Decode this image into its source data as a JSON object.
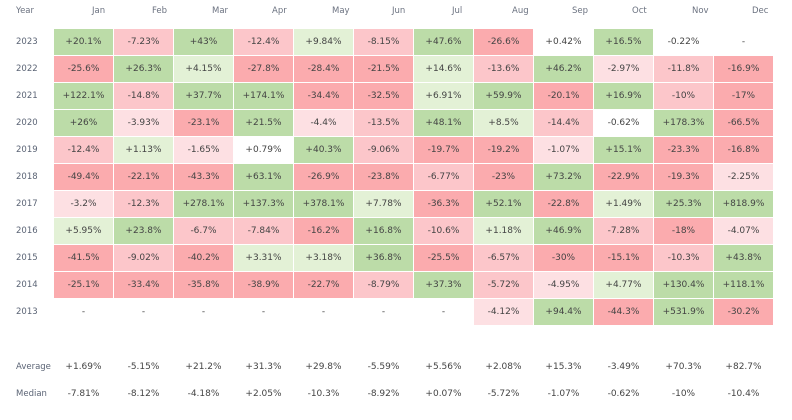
{
  "chart_data": {
    "type": "heatmap",
    "corner_label": "Year",
    "columns": [
      "Jan",
      "Feb",
      "Mar",
      "Apr",
      "May",
      "Jun",
      "Jul",
      "Aug",
      "Sep",
      "Oct",
      "Nov",
      "Dec"
    ],
    "rows": [
      {
        "year": "2023",
        "values": [
          "+20.1%",
          "-7.23%",
          "+43%",
          "-12.4%",
          "+9.84%",
          "-8.15%",
          "+47.6%",
          "-26.6%",
          "+0.42%",
          "+16.5%",
          "-0.22%",
          "-"
        ]
      },
      {
        "year": "2022",
        "values": [
          "-25.6%",
          "+26.3%",
          "+4.15%",
          "-27.8%",
          "-28.4%",
          "-21.5%",
          "+14.6%",
          "-13.6%",
          "+46.2%",
          "-2.97%",
          "-11.8%",
          "-16.9%"
        ]
      },
      {
        "year": "2021",
        "values": [
          "+122.1%",
          "-14.8%",
          "+37.7%",
          "+174.1%",
          "-34.4%",
          "-32.5%",
          "+6.91%",
          "+59.9%",
          "-20.1%",
          "+16.9%",
          "-10%",
          "-17%"
        ]
      },
      {
        "year": "2020",
        "values": [
          "+26%",
          "-3.93%",
          "-23.1%",
          "+21.5%",
          "-4.4%",
          "-13.5%",
          "+48.1%",
          "+8.5%",
          "-14.4%",
          "-0.62%",
          "+178.3%",
          "-66.5%"
        ]
      },
      {
        "year": "2019",
        "values": [
          "-12.4%",
          "+1.13%",
          "-1.65%",
          "+0.79%",
          "+40.3%",
          "-9.06%",
          "-19.7%",
          "-19.2%",
          "-1.07%",
          "+15.1%",
          "-23.3%",
          "-16.8%"
        ]
      },
      {
        "year": "2018",
        "values": [
          "-49.4%",
          "-22.1%",
          "-43.3%",
          "+63.1%",
          "-26.9%",
          "-23.8%",
          "-6.77%",
          "-23%",
          "+73.2%",
          "-22.9%",
          "-19.3%",
          "-2.25%"
        ]
      },
      {
        "year": "2017",
        "values": [
          "-3.2%",
          "-12.3%",
          "+278.1%",
          "+137.3%",
          "+378.1%",
          "+7.78%",
          "-36.3%",
          "+52.1%",
          "-22.8%",
          "+1.49%",
          "+25.3%",
          "+818.9%"
        ]
      },
      {
        "year": "2016",
        "values": [
          "+5.95%",
          "+23.8%",
          "-6.7%",
          "-7.84%",
          "-16.2%",
          "+16.8%",
          "-10.6%",
          "+1.18%",
          "+46.9%",
          "-7.28%",
          "-18%",
          "-4.07%"
        ]
      },
      {
        "year": "2015",
        "values": [
          "-41.5%",
          "-9.02%",
          "-40.2%",
          "+3.31%",
          "+3.18%",
          "+36.8%",
          "-25.5%",
          "-6.57%",
          "-30%",
          "-15.1%",
          "-10.3%",
          "+43.8%"
        ]
      },
      {
        "year": "2014",
        "values": [
          "-25.1%",
          "-33.4%",
          "-35.8%",
          "-38.9%",
          "-22.7%",
          "-8.79%",
          "+37.3%",
          "-5.72%",
          "-4.95%",
          "+4.77%",
          "+130.4%",
          "+118.1%"
        ]
      },
      {
        "year": "2013",
        "values": [
          "-",
          "-",
          "-",
          "-",
          "-",
          "-",
          "-",
          "-4.12%",
          "+94.4%",
          "-44.3%",
          "+531.9%",
          "-30.2%"
        ]
      }
    ],
    "summary": [
      {
        "label": "Average",
        "values": [
          "+1.69%",
          "-5.15%",
          "+21.2%",
          "+31.3%",
          "+29.8%",
          "-5.59%",
          "+5.56%",
          "+2.08%",
          "+15.3%",
          "-3.49%",
          "+70.3%",
          "+82.7%"
        ]
      },
      {
        "label": "Median",
        "values": [
          "-7.81%",
          "-8.12%",
          "-4.18%",
          "+2.05%",
          "-10.3%",
          "-8.92%",
          "+0.07%",
          "-5.72%",
          "-1.07%",
          "-0.62%",
          "-10%",
          "-10.4%"
        ]
      }
    ],
    "colors": {
      "strong_green": "#bcdca8",
      "light_green": "#e3f1d6",
      "neutral": "#ffffff",
      "light_pink": "#fde0e3",
      "mid_pink": "#fcc6ca",
      "strong_red": "#fbabae"
    }
  }
}
